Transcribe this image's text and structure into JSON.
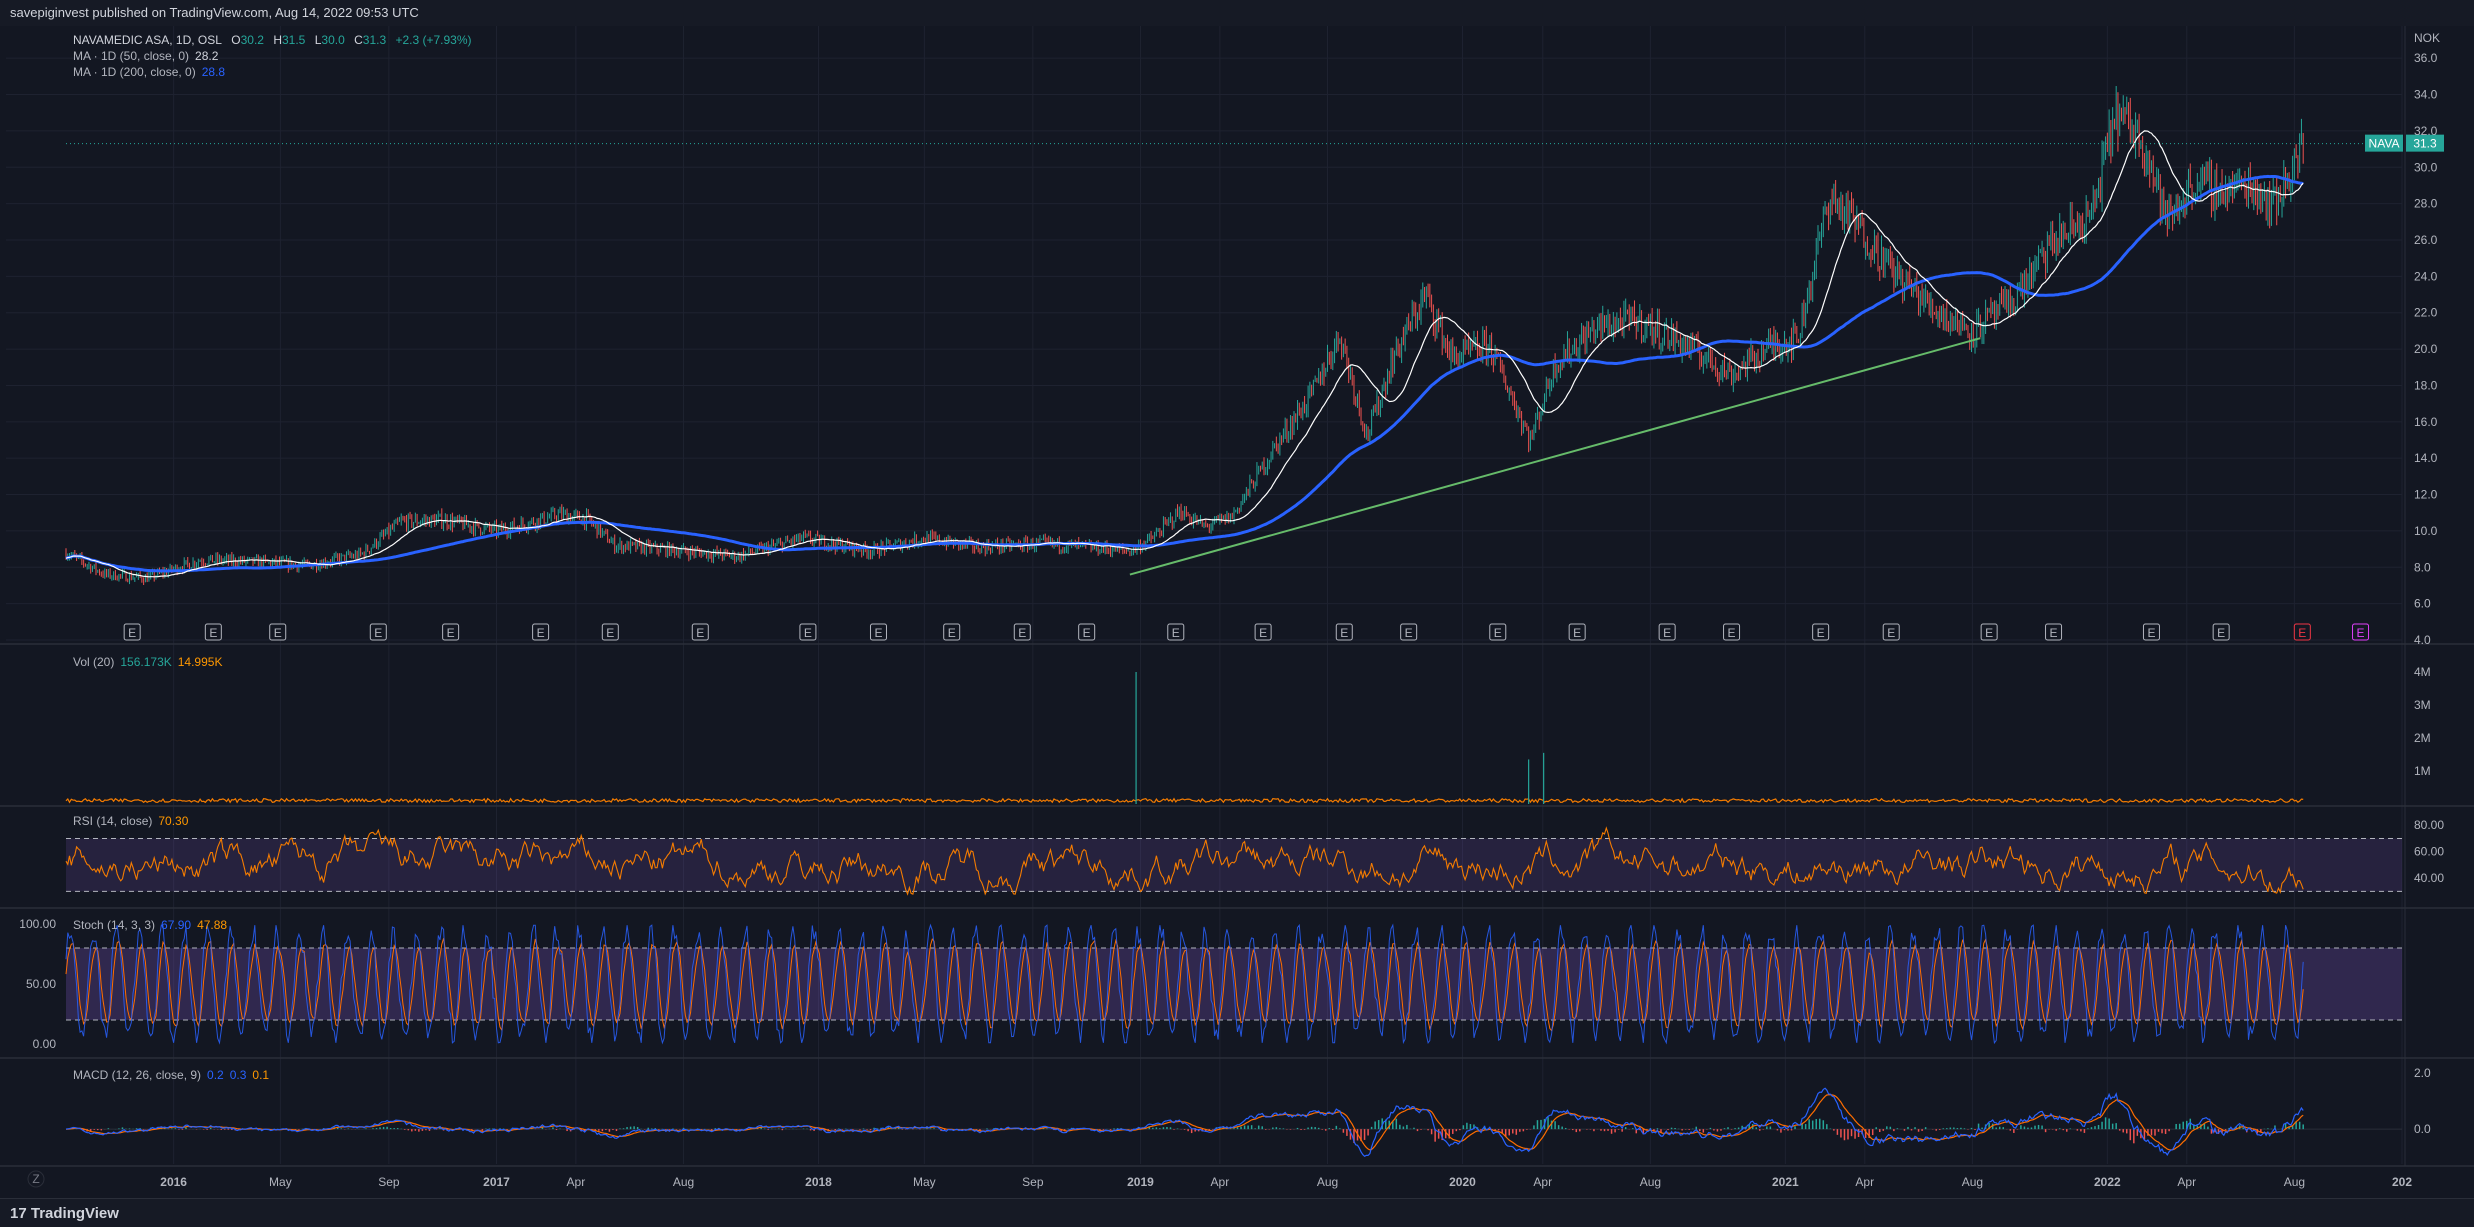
{
  "header": {
    "text": "savepiginvest published on TradingView.com, Aug 14, 2022 09:53 UTC"
  },
  "footer": {
    "logo_text": "TradingView",
    "corner_label": "Z"
  },
  "colors": {
    "background": "#131722",
    "grid": "#1e2230",
    "up": "#26a69a",
    "down": "#ef5350",
    "ma50": "#ffffff",
    "ma200": "#2962ff",
    "trendline": "#66bb6a",
    "volume": "#f57c00",
    "rsi": "#f57c00",
    "rsi_band": "#7e57c2",
    "stoch_k": "#2962ff",
    "stoch_d": "#ff6d00",
    "stoch_band": "#7e57c2",
    "macd": "#2962ff",
    "macd_signal": "#ff6d00",
    "price_label": "#26a69a"
  },
  "legend": {
    "symbol": "NAVAMEDIC ASA, 1D, OSL",
    "ohlc": {
      "o_label": "O",
      "o": "30.2",
      "h_label": "H",
      "h": "31.5",
      "l_label": "L",
      "l": "30.0",
      "c_label": "C",
      "c": "31.3",
      "change": "+2.3 (+7.93%)"
    },
    "ma50": {
      "label": "MA · 1D (50, close, 0)",
      "value": "28.2"
    },
    "ma200": {
      "label": "MA · 1D (200, close, 0)",
      "value": "28.8"
    },
    "vol": {
      "label": "Vol (20)",
      "value1": "156.173K",
      "value2": "14.995K"
    },
    "rsi": {
      "label": "RSI (14, close)",
      "value": "70.30"
    },
    "stoch": {
      "label": "Stoch (14, 3, 3)",
      "k": "67.90",
      "d": "47.88"
    },
    "macd": {
      "label": "MACD (12, 26, close, 9)",
      "v1": "0.2",
      "v2": "0.3",
      "v3": "0.1"
    }
  },
  "chart_data": {
    "type": "candlestick",
    "currency_label": "NOK",
    "last_price": {
      "symbol": "NAVA",
      "value": "31.3"
    },
    "x_axis": {
      "range": [
        "2015-09",
        "2022-12"
      ],
      "ticks": [
        {
          "label": "2016",
          "date": "2016-01-01"
        },
        {
          "label": "May",
          "date": "2016-05-01"
        },
        {
          "label": "Sep",
          "date": "2016-09-01"
        },
        {
          "label": "2017",
          "date": "2017-01-01"
        },
        {
          "label": "Apr",
          "date": "2017-04-01"
        },
        {
          "label": "Aug",
          "date": "2017-08-01"
        },
        {
          "label": "2018",
          "date": "2018-01-01"
        },
        {
          "label": "May",
          "date": "2018-05-01"
        },
        {
          "label": "Sep",
          "date": "2018-09-01"
        },
        {
          "label": "2019",
          "date": "2019-01-01"
        },
        {
          "label": "Apr",
          "date": "2019-04-01"
        },
        {
          "label": "Aug",
          "date": "2019-08-01"
        },
        {
          "label": "2020",
          "date": "2020-01-01"
        },
        {
          "label": "Apr",
          "date": "2020-04-01"
        },
        {
          "label": "Aug",
          "date": "2020-08-01"
        },
        {
          "label": "2021",
          "date": "2021-01-01"
        },
        {
          "label": "Apr",
          "date": "2021-04-01"
        },
        {
          "label": "Aug",
          "date": "2021-08-01"
        },
        {
          "label": "2022",
          "date": "2022-01-01"
        },
        {
          "label": "Apr",
          "date": "2022-04-01"
        },
        {
          "label": "Aug",
          "date": "2022-08-01"
        },
        {
          "label": "202",
          "date": "2022-12-01"
        }
      ]
    },
    "price_axis": {
      "ylim": [
        4.0,
        37.0
      ],
      "ticks": [
        "4.0",
        "6.0",
        "8.0",
        "10.0",
        "12.0",
        "14.0",
        "16.0",
        "18.0",
        "20.0",
        "22.0",
        "24.0",
        "26.0",
        "28.0",
        "30.0",
        "32.0",
        "34.0",
        "36.0"
      ]
    },
    "price_path": [
      [
        "2015-09-01",
        8.8
      ],
      [
        "2015-10-15",
        7.6
      ],
      [
        "2015-12-01",
        7.4
      ],
      [
        "2016-02-01",
        8.4
      ],
      [
        "2016-04-01",
        8.3
      ],
      [
        "2016-06-01",
        8.1
      ],
      [
        "2016-08-01",
        8.7
      ],
      [
        "2016-09-15",
        10.5
      ],
      [
        "2016-11-01",
        10.6
      ],
      [
        "2017-01-01",
        10.0
      ],
      [
        "2017-03-15",
        10.9
      ],
      [
        "2017-04-15",
        10.6
      ],
      [
        "2017-05-15",
        9.2
      ],
      [
        "2017-08-01",
        8.9
      ],
      [
        "2017-10-01",
        8.6
      ],
      [
        "2017-12-15",
        9.6
      ],
      [
        "2018-03-01",
        8.9
      ],
      [
        "2018-05-01",
        9.6
      ],
      [
        "2018-07-01",
        9.1
      ],
      [
        "2018-09-15",
        9.3
      ],
      [
        "2018-12-20",
        8.9
      ],
      [
        "2019-01-15",
        9.6
      ],
      [
        "2019-02-15",
        11.1
      ],
      [
        "2019-03-15",
        10.2
      ],
      [
        "2019-04-15",
        10.8
      ],
      [
        "2019-06-01",
        14.5
      ],
      [
        "2019-07-15",
        17.6
      ],
      [
        "2019-08-15",
        20.8
      ],
      [
        "2019-09-15",
        15.2
      ],
      [
        "2019-10-15",
        19.6
      ],
      [
        "2019-11-20",
        23.0
      ],
      [
        "2019-12-20",
        19.5
      ],
      [
        "2020-02-01",
        20.2
      ],
      [
        "2020-03-18",
        15.0
      ],
      [
        "2020-04-15",
        19.2
      ],
      [
        "2020-06-01",
        21.2
      ],
      [
        "2020-07-15",
        21.6
      ],
      [
        "2020-09-15",
        20.1
      ],
      [
        "2020-11-01",
        18.6
      ],
      [
        "2020-12-15",
        20.2
      ],
      [
        "2021-01-15",
        20.6
      ],
      [
        "2021-02-20",
        28.4
      ],
      [
        "2021-03-20",
        27.0
      ],
      [
        "2021-05-01",
        24.4
      ],
      [
        "2021-06-15",
        22.3
      ],
      [
        "2021-08-01",
        21.0
      ],
      [
        "2021-09-15",
        22.6
      ],
      [
        "2021-11-01",
        25.9
      ],
      [
        "2021-12-15",
        27.4
      ],
      [
        "2022-01-10",
        33.0
      ],
      [
        "2022-02-10",
        31.6
      ],
      [
        "2022-03-10",
        27.0
      ],
      [
        "2022-04-10",
        29.2
      ],
      [
        "2022-05-10",
        28.7
      ],
      [
        "2022-06-10",
        29.1
      ],
      [
        "2022-07-10",
        28.0
      ],
      [
        "2022-08-12",
        31.3
      ]
    ],
    "trendline": {
      "from": [
        "2018-12-20",
        7.6
      ],
      "to": [
        "2021-08-10",
        20.6
      ]
    },
    "earnings_markers": [
      "2015-11-15",
      "2016-02-15",
      "2016-04-28",
      "2016-08-20",
      "2016-11-10",
      "2017-02-20",
      "2017-05-10",
      "2017-08-20",
      "2017-12-20",
      "2018-03-10",
      "2018-06-01",
      "2018-08-20",
      "2018-11-01",
      "2019-02-10",
      "2019-05-20",
      "2019-08-20",
      "2019-11-01",
      "2020-02-10",
      "2020-05-10",
      "2020-08-20",
      "2020-11-01",
      "2021-02-10",
      "2021-05-01",
      "2021-08-20",
      "2021-11-01",
      "2022-02-20",
      "2022-05-10",
      "2022-08-10",
      "2022-10-15"
    ],
    "volume_axis": {
      "ticks": [
        "1M",
        "2M",
        "3M",
        "4M"
      ]
    },
    "volume_spikes": [
      [
        "2018-12-27",
        4000000
      ],
      [
        "2020-03-16",
        1350000
      ],
      [
        "2020-04-02",
        1550000
      ]
    ],
    "rsi_axis": {
      "ticks": [
        "40.00",
        "60.00",
        "80.00"
      ],
      "upper": 70,
      "lower": 30
    },
    "stoch_axis": {
      "ticks": [
        "0.00",
        "50.00",
        "100.00"
      ],
      "upper": 80,
      "lower": 20
    },
    "macd_axis": {
      "ticks": [
        "0.0",
        "2.0"
      ]
    }
  }
}
